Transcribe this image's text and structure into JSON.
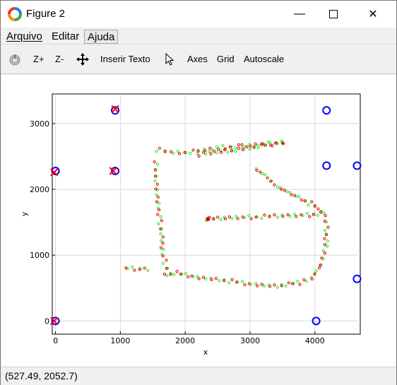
{
  "window": {
    "title": "Figure 2",
    "minimize_glyph": "—",
    "maximize_glyph": "☐",
    "close_glyph": "✕"
  },
  "menu": {
    "items": [
      {
        "label": "Arquivo",
        "accent": "A"
      },
      {
        "label": "Editar",
        "accent": "E"
      },
      {
        "label": "Ajuda",
        "accent": "A"
      }
    ]
  },
  "toolbar": {
    "home_icon": "reset-view-icon",
    "zoom_in": "Z+",
    "zoom_out": "Z-",
    "pan_icon": "move-arrows-icon",
    "insert_text": "Inserir Texto",
    "pointer_icon": "pointer-icon",
    "axes": "Axes",
    "grid": "Grid",
    "autoscale": "Autoscale"
  },
  "status": {
    "coords": "(527.49, 2052.7)"
  },
  "chart_data": {
    "type": "scatter",
    "xlabel": "x",
    "ylabel": "y",
    "xlim": [
      -50,
      4700
    ],
    "ylim": [
      -200,
      3450
    ],
    "xticks": [
      0,
      1000,
      2000,
      3000,
      4000
    ],
    "yticks": [
      0,
      1000,
      2000,
      3000
    ],
    "grid": true,
    "colors": {
      "blue": "#0000ff",
      "red_x": "#ff0000",
      "red_dots": "#e00000",
      "green_dots": "#22ee22",
      "grid": "#d8d8d8"
    },
    "blue_circles": [
      [
        0,
        2280
      ],
      [
        920,
        3200
      ],
      [
        920,
        2280
      ],
      [
        0,
        0
      ],
      [
        4020,
        0
      ],
      [
        4180,
        3200
      ],
      [
        4180,
        2360
      ],
      [
        4650,
        2360
      ],
      [
        4650,
        640
      ]
    ],
    "red_crosses": [
      [
        920,
        3220
      ],
      [
        890,
        2280
      ],
      [
        -20,
        2260
      ],
      [
        -20,
        0
      ]
    ],
    "track_path": [
      [
        1580,
        2600
      ],
      [
        1800,
        2560
      ],
      [
        2000,
        2560
      ],
      [
        2300,
        2600
      ],
      [
        2600,
        2640
      ],
      [
        2900,
        2660
      ],
      [
        3200,
        2690
      ],
      [
        3500,
        2710
      ],
      [
        3500,
        2715
      ],
      [
        2800,
        2600
      ],
      [
        2300,
        2550
      ],
      [
        2100,
        2500
      ],
      [
        3100,
        2300
      ],
      [
        3250,
        2200
      ],
      [
        3400,
        2050
      ],
      [
        3700,
        1900
      ],
      [
        4000,
        1750
      ],
      [
        4150,
        1620
      ],
      [
        4180,
        1400
      ],
      [
        4170,
        1150
      ],
      [
        4090,
        850
      ],
      [
        3950,
        650
      ],
      [
        3750,
        580
      ],
      [
        3400,
        530
      ],
      [
        3000,
        560
      ],
      [
        2600,
        620
      ],
      [
        2200,
        660
      ],
      [
        1850,
        730
      ],
      [
        1700,
        700
      ],
      [
        1720,
        800
      ],
      [
        1650,
        1000
      ],
      [
        1640,
        1300
      ],
      [
        1600,
        1600
      ],
      [
        1560,
        2000
      ],
      [
        1540,
        2300
      ],
      [
        1560,
        2500
      ],
      [
        2350,
        1550
      ],
      [
        2700,
        1570
      ],
      [
        3100,
        1580
      ],
      [
        3500,
        1600
      ],
      [
        3900,
        1610
      ],
      [
        4150,
        1640
      ],
      [
        1100,
        800
      ],
      [
        1300,
        790
      ],
      [
        1500,
        780
      ]
    ]
  }
}
